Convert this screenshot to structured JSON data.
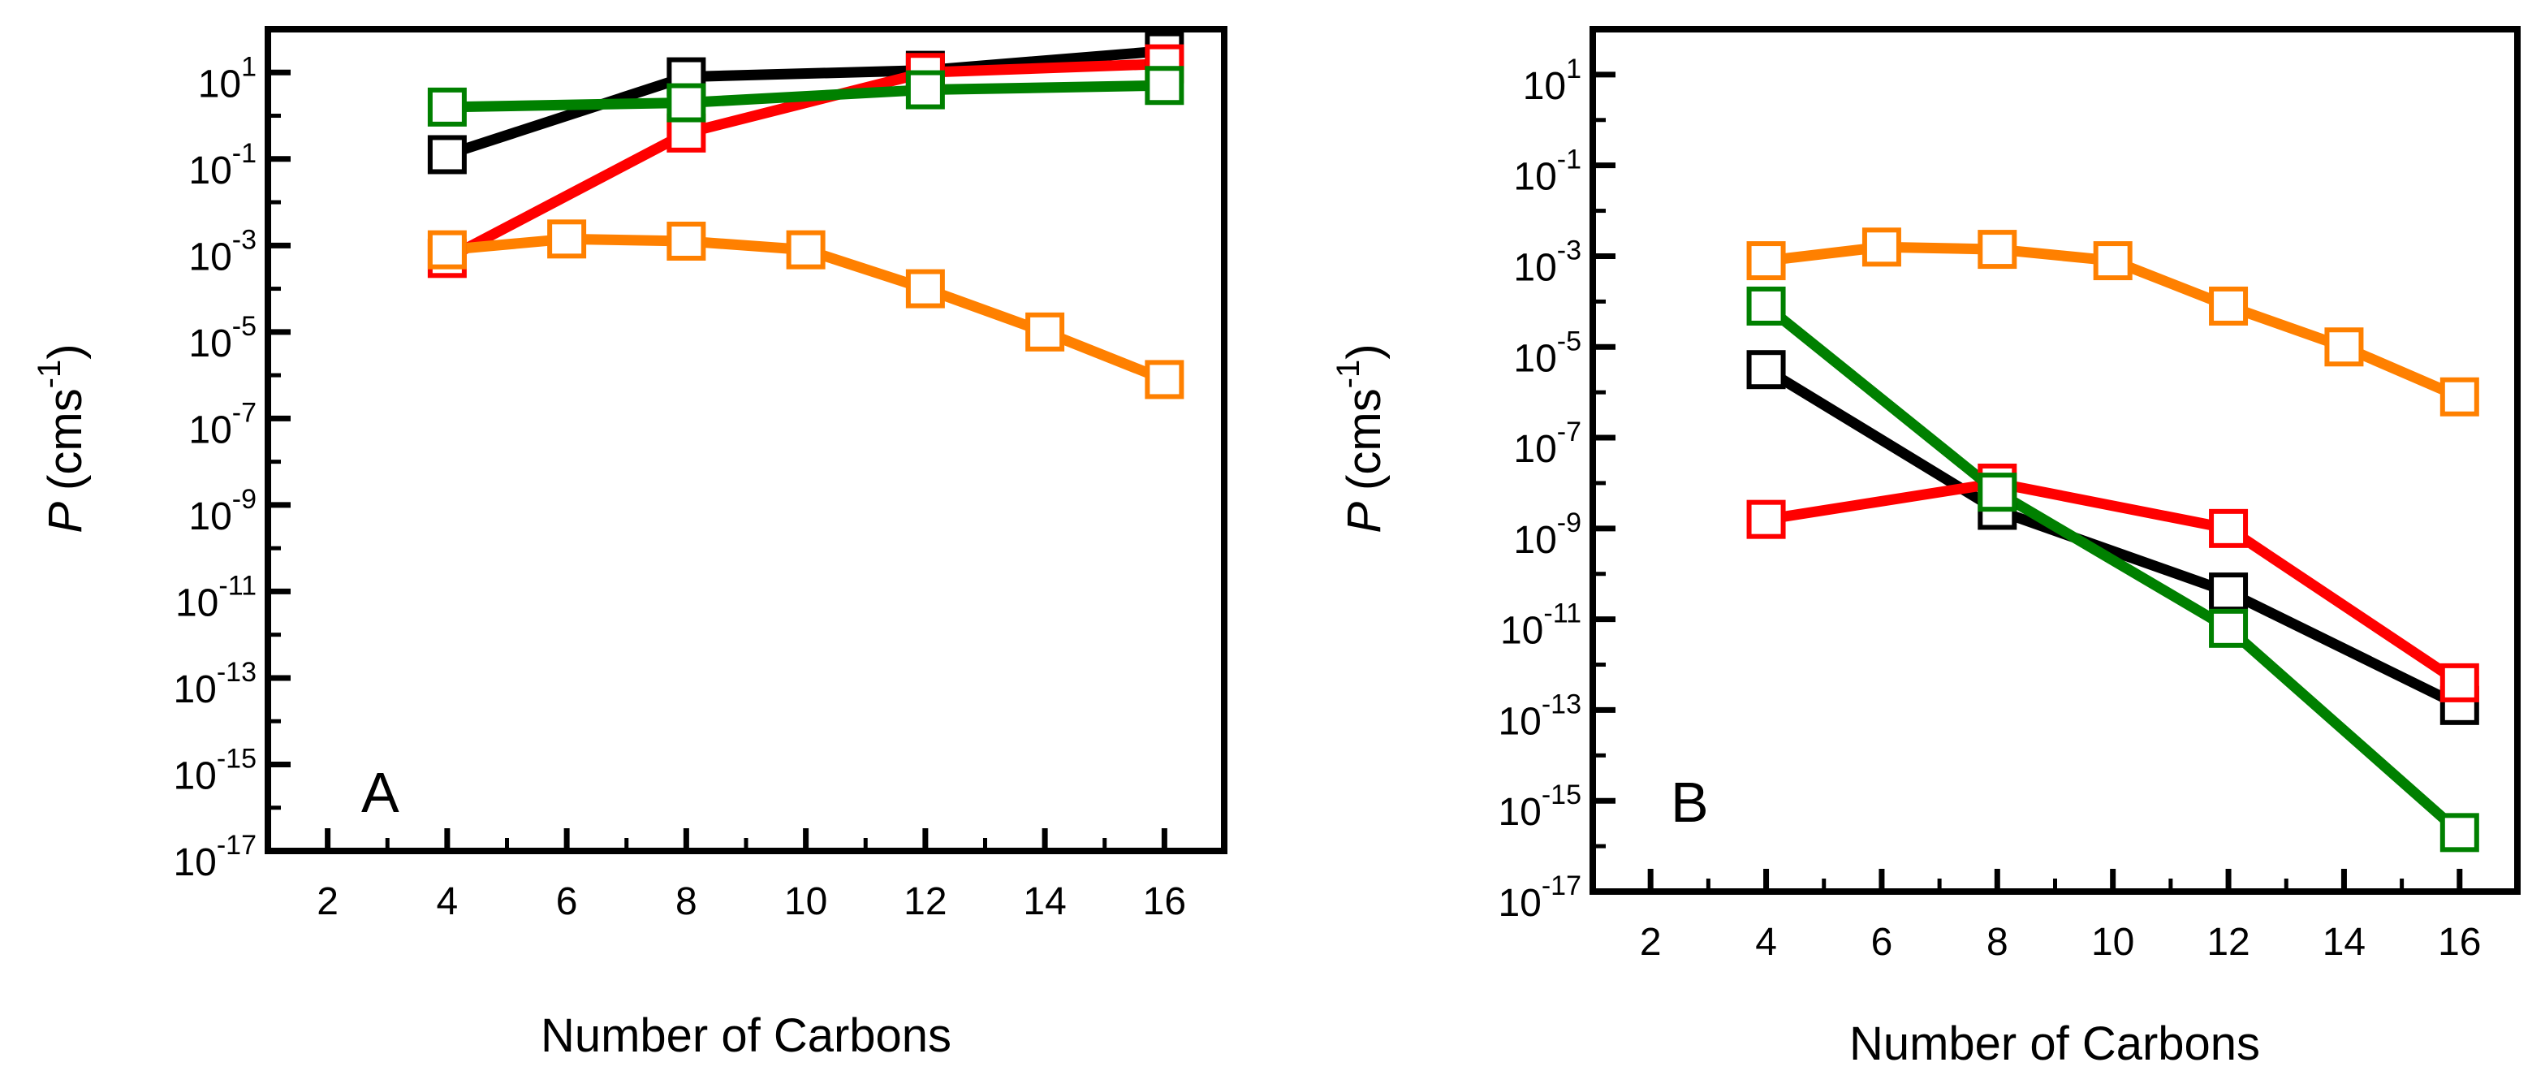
{
  "chart_data": [
    {
      "type": "line",
      "panel_label": "A",
      "xlabel": "Number of Carbons",
      "ylabel": {
        "italic": "P",
        "unit": "(cms",
        "exp": "-1",
        "close": ")"
      },
      "xlim": [
        1,
        17
      ],
      "ylim_log10": [
        -17,
        2
      ],
      "x_ticks": [
        "2",
        "4",
        "6",
        "8",
        "10",
        "12",
        "14",
        "16"
      ],
      "y_ticks": [
        {
          "base": "10",
          "exp": "1"
        },
        {
          "base": "10",
          "exp": "-1"
        },
        {
          "base": "10",
          "exp": "-3"
        },
        {
          "base": "10",
          "exp": "-5"
        },
        {
          "base": "10",
          "exp": "-7"
        },
        {
          "base": "10",
          "exp": "-9"
        },
        {
          "base": "10",
          "exp": "-11"
        },
        {
          "base": "10",
          "exp": "-13"
        },
        {
          "base": "10",
          "exp": "-15"
        },
        {
          "base": "10",
          "exp": "-17"
        }
      ],
      "series": [
        {
          "name": "black",
          "color": "#000000",
          "x": [
            4,
            8,
            12,
            16
          ],
          "log10_values": [
            -0.9,
            0.9,
            1.05,
            1.5
          ]
        },
        {
          "name": "red",
          "color": "#ff0000",
          "x": [
            4,
            8,
            12,
            16
          ],
          "log10_values": [
            -3.3,
            -0.4,
            1.0,
            1.2
          ]
        },
        {
          "name": "green",
          "color": "#008000",
          "x": [
            4,
            8,
            12,
            16
          ],
          "log10_values": [
            0.2,
            0.3,
            0.6,
            0.7
          ]
        },
        {
          "name": "orange",
          "color": "#ff8000",
          "x": [
            4,
            6,
            8,
            10,
            12,
            14,
            16
          ],
          "log10_values": [
            -3.1,
            -2.85,
            -2.9,
            -3.1,
            -4.0,
            -5.0,
            -6.1
          ]
        }
      ]
    },
    {
      "type": "line",
      "panel_label": "B",
      "xlabel": "Number of Carbons",
      "ylabel": {
        "italic": "P",
        "unit": "(cms",
        "exp": "-1",
        "close": ")"
      },
      "xlim": [
        1,
        17
      ],
      "ylim_log10": [
        -17,
        2
      ],
      "x_ticks": [
        "2",
        "4",
        "6",
        "8",
        "10",
        "12",
        "14",
        "16"
      ],
      "y_ticks": [
        {
          "base": "10",
          "exp": "1"
        },
        {
          "base": "10",
          "exp": "-1"
        },
        {
          "base": "10",
          "exp": "-3"
        },
        {
          "base": "10",
          "exp": "-5"
        },
        {
          "base": "10",
          "exp": "-7"
        },
        {
          "base": "10",
          "exp": "-9"
        },
        {
          "base": "10",
          "exp": "-11"
        },
        {
          "base": "10",
          "exp": "-13"
        },
        {
          "base": "10",
          "exp": "-15"
        },
        {
          "base": "10",
          "exp": "-17"
        }
      ],
      "series": [
        {
          "name": "black",
          "color": "#000000",
          "x": [
            4,
            8,
            12,
            16
          ],
          "log10_values": [
            -5.5,
            -8.6,
            -10.4,
            -12.9
          ]
        },
        {
          "name": "red",
          "color": "#ff0000",
          "x": [
            4,
            8,
            12,
            16
          ],
          "log10_values": [
            -8.8,
            -8.0,
            -9.0,
            -12.4
          ]
        },
        {
          "name": "green",
          "color": "#008000",
          "x": [
            4,
            8,
            12,
            16
          ],
          "log10_values": [
            -4.1,
            -8.2,
            -11.2,
            -15.7
          ]
        },
        {
          "name": "orange",
          "color": "#ff8000",
          "x": [
            4,
            6,
            8,
            10,
            12,
            14,
            16
          ],
          "log10_values": [
            -3.1,
            -2.8,
            -2.85,
            -3.1,
            -4.1,
            -5.0,
            -6.1
          ]
        }
      ]
    }
  ]
}
